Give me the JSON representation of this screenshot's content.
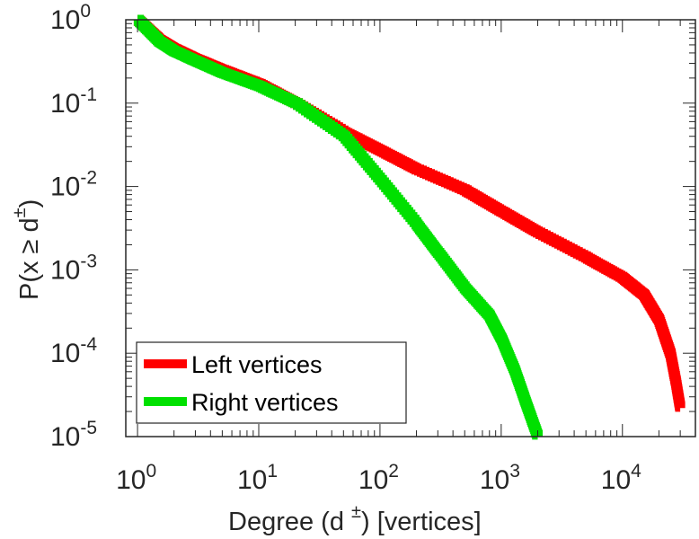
{
  "chart_data": {
    "type": "line",
    "scale": {
      "x": "log",
      "y": "log"
    },
    "xlim": [
      0.8,
      40000
    ],
    "ylim": [
      1e-05,
      1
    ],
    "xlabel": {
      "text": "Degree (d ",
      "superscript": "±",
      "suffix": ") [vertices]"
    },
    "ylabel": {
      "text": "P(x ≥ d",
      "superscript": "±",
      "suffix": ")"
    },
    "x_ticks": [
      {
        "base": "10",
        "exp": "0",
        "value": 1
      },
      {
        "base": "10",
        "exp": "1",
        "value": 10
      },
      {
        "base": "10",
        "exp": "2",
        "value": 100
      },
      {
        "base": "10",
        "exp": "3",
        "value": 1000
      },
      {
        "base": "10",
        "exp": "4",
        "value": 10000
      }
    ],
    "y_ticks": [
      {
        "base": "10",
        "exp": "0",
        "value": 1
      },
      {
        "base": "10",
        "exp": "-1",
        "value": 0.1
      },
      {
        "base": "10",
        "exp": "-2",
        "value": 0.01
      },
      {
        "base": "10",
        "exp": "-3",
        "value": 0.001
      },
      {
        "base": "10",
        "exp": "-4",
        "value": 0.0001
      },
      {
        "base": "10",
        "exp": "-5",
        "value": 1e-05
      }
    ],
    "legend": {
      "position": "bottom-left"
    },
    "series": [
      {
        "name": "Left vertices",
        "color": "#ff0000",
        "points": [
          [
            1,
            1.0
          ],
          [
            1.5,
            0.58
          ],
          [
            2,
            0.45
          ],
          [
            3,
            0.34
          ],
          [
            5,
            0.25
          ],
          [
            10,
            0.17
          ],
          [
            20,
            0.1
          ],
          [
            50,
            0.045
          ],
          [
            100,
            0.027
          ],
          [
            200,
            0.016
          ],
          [
            500,
            0.009
          ],
          [
            1000,
            0.005
          ],
          [
            2000,
            0.0028
          ],
          [
            5000,
            0.0014
          ],
          [
            10000,
            0.0008
          ],
          [
            15000,
            0.0005
          ],
          [
            20000,
            0.00025
          ],
          [
            25000,
            9.5e-05
          ],
          [
            28000,
            4e-05
          ],
          [
            30000,
            2.2e-05
          ]
        ]
      },
      {
        "name": "Right vertices",
        "color": "#00e000",
        "points": [
          [
            1,
            1.0
          ],
          [
            1.5,
            0.55
          ],
          [
            2,
            0.42
          ],
          [
            3,
            0.32
          ],
          [
            5,
            0.23
          ],
          [
            10,
            0.16
          ],
          [
            20,
            0.1
          ],
          [
            50,
            0.04
          ],
          [
            100,
            0.012
          ],
          [
            200,
            0.0035
          ],
          [
            300,
            0.0016
          ],
          [
            500,
            0.0006
          ],
          [
            800,
            0.00028
          ],
          [
            1000,
            0.00015
          ],
          [
            1300,
            6e-05
          ],
          [
            1600,
            2.5e-05
          ],
          [
            2000,
            1e-05
          ]
        ]
      }
    ]
  }
}
